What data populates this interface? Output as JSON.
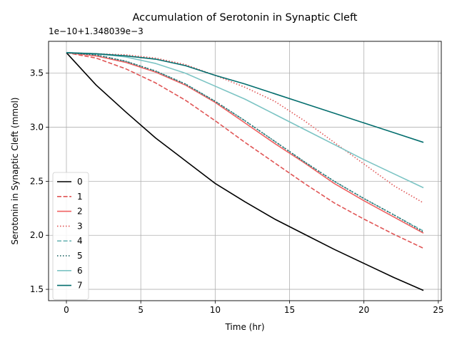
{
  "chart_data": {
    "type": "line",
    "title": "Accumulation of Serotonin in Synaptic Cleft",
    "xlabel": "Time (hr)",
    "ylabel": "Serotonin in Synaptic Cleft (mmol)",
    "offset_text": "1e−10+1.348039e−3",
    "xlim": [
      -1.2,
      25.2
    ],
    "ylim": [
      1.395,
      3.795
    ],
    "xticks": [
      0,
      5,
      10,
      15,
      20,
      25
    ],
    "xtick_labels": [
      "0",
      "5",
      "10",
      "15",
      "20",
      "25"
    ],
    "yticks": [
      1.5,
      2.0,
      2.5,
      3.0,
      3.5
    ],
    "ytick_labels": [
      "1.5",
      "2.0",
      "2.5",
      "3.0",
      "3.5"
    ],
    "grid": true,
    "legend_position": "lower-left",
    "x": [
      0,
      2,
      4,
      6,
      8,
      10,
      12,
      14,
      16,
      18,
      20,
      22,
      24
    ],
    "series": [
      {
        "name": "0",
        "color": "#000000",
        "dash": "solid",
        "values": [
          3.69,
          3.39,
          3.14,
          2.9,
          2.69,
          2.48,
          2.31,
          2.15,
          2.01,
          1.87,
          1.74,
          1.61,
          1.49
        ]
      },
      {
        "name": "1",
        "color": "#e05555",
        "dash": "dashed",
        "values": [
          3.69,
          3.64,
          3.54,
          3.41,
          3.25,
          3.06,
          2.86,
          2.67,
          2.48,
          2.3,
          2.15,
          2.01,
          1.88
        ]
      },
      {
        "name": "2",
        "color": "#f06060",
        "dash": "solid",
        "values": [
          3.69,
          3.66,
          3.6,
          3.51,
          3.39,
          3.23,
          3.04,
          2.85,
          2.67,
          2.48,
          2.32,
          2.17,
          2.02
        ]
      },
      {
        "name": "3",
        "color": "#e05555",
        "dash": "dotted",
        "values": [
          3.69,
          3.68,
          3.67,
          3.64,
          3.58,
          3.48,
          3.37,
          3.24,
          3.06,
          2.86,
          2.66,
          2.46,
          2.3
        ]
      },
      {
        "name": "4",
        "color": "#6fb6b6",
        "dash": "dashed",
        "values": [
          3.69,
          3.67,
          3.61,
          3.52,
          3.4,
          3.24,
          3.06,
          2.87,
          2.68,
          2.5,
          2.34,
          2.19,
          2.04
        ]
      },
      {
        "name": "5",
        "color": "#0f5a5a",
        "dash": "dotted",
        "values": [
          3.69,
          3.67,
          3.61,
          3.52,
          3.4,
          3.24,
          3.06,
          2.87,
          2.68,
          2.5,
          2.34,
          2.19,
          2.03
        ]
      },
      {
        "name": "6",
        "color": "#7cc4c4",
        "dash": "solid",
        "values": [
          3.69,
          3.68,
          3.65,
          3.59,
          3.5,
          3.38,
          3.26,
          3.12,
          2.98,
          2.84,
          2.7,
          2.57,
          2.44
        ]
      },
      {
        "name": "7",
        "color": "#046e6e",
        "dash": "solid",
        "values": [
          3.69,
          3.68,
          3.66,
          3.63,
          3.57,
          3.48,
          3.4,
          3.31,
          3.22,
          3.13,
          3.04,
          2.95,
          2.86
        ]
      }
    ]
  }
}
